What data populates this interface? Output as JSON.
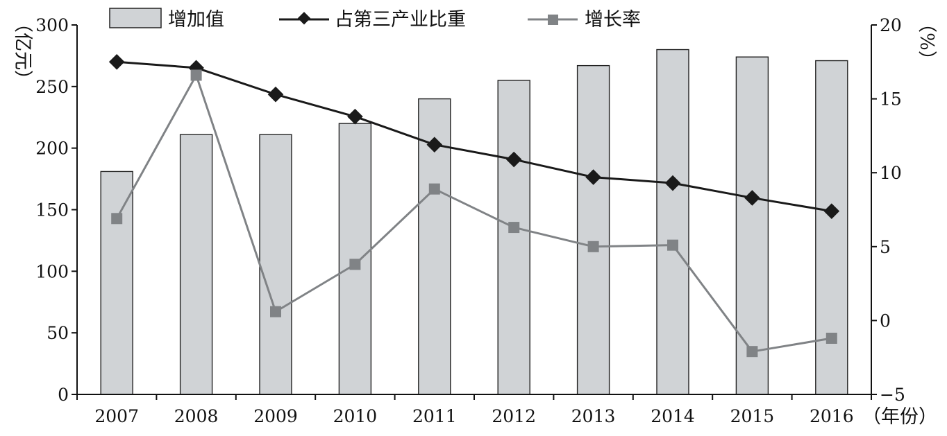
{
  "chart_data": {
    "type": "bar",
    "categories": [
      "2007",
      "2008",
      "2009",
      "2010",
      "2011",
      "2012",
      "2013",
      "2014",
      "2015",
      "2016"
    ],
    "x_unit": "（年份）",
    "y_left": {
      "label": "（亿元）",
      "ylim": [
        0,
        300
      ],
      "ticks": [
        0,
        50,
        100,
        150,
        200,
        250,
        300
      ]
    },
    "y_right": {
      "label": "（%）",
      "ylim": [
        -5,
        20
      ],
      "ticks": [
        -5,
        0,
        5,
        10,
        15,
        20
      ]
    },
    "legend_position": "top",
    "grid": false,
    "series": [
      {
        "name": "增加值",
        "type": "bar",
        "axis": "left",
        "color": "#d0d3d6",
        "values": [
          181,
          211,
          211,
          220,
          240,
          255,
          267,
          280,
          274,
          271
        ]
      },
      {
        "name": "占第三产业比重",
        "type": "line",
        "axis": "right",
        "color": "#1a1a1a",
        "marker": "diamond",
        "values": [
          17.5,
          17.1,
          15.3,
          13.8,
          11.9,
          10.9,
          9.7,
          9.3,
          8.3,
          7.4
        ]
      },
      {
        "name": "增长率",
        "type": "line",
        "axis": "right",
        "color": "#808386",
        "marker": "square",
        "values": [
          6.9,
          16.6,
          0.6,
          3.8,
          8.9,
          6.3,
          5.0,
          5.1,
          -2.1,
          -1.2
        ]
      }
    ]
  }
}
